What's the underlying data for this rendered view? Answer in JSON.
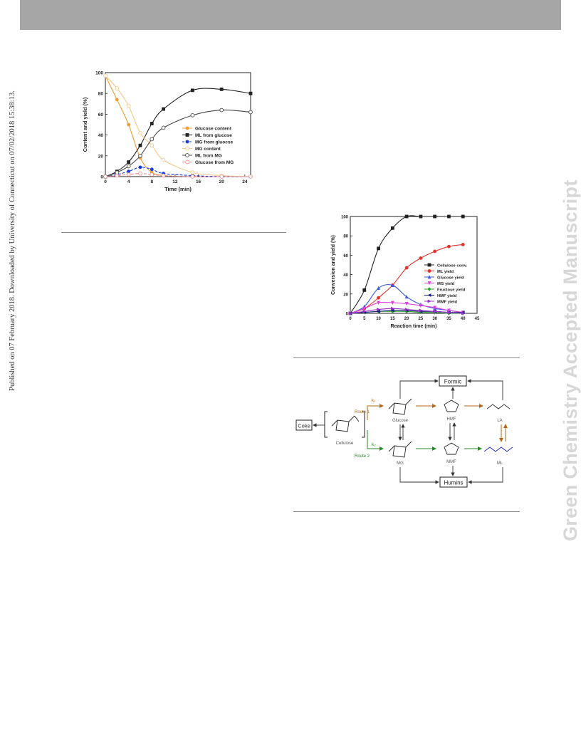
{
  "side_note": "Published on 07 February 2018. Downloaded by University of Connecticut on 07/02/2018 15:38:13.",
  "watermark": "Green Chemistry Accepted Manuscript",
  "chart_data": [
    {
      "type": "line",
      "xlabel": "Time (min)",
      "ylabel": "Content and yield (%)",
      "xlim": [
        0,
        25
      ],
      "ylim": [
        0,
        100
      ],
      "xticks": [
        0,
        4,
        8,
        12,
        16,
        20,
        24
      ],
      "yticks": [
        0,
        20,
        40,
        60,
        80,
        100
      ],
      "legend_position": "right-middle",
      "series": [
        {
          "name": "Glucose content",
          "color": "#f39c33",
          "marker": "filled-circle",
          "dash": "solid",
          "x": [
            0,
            2,
            4,
            6,
            8,
            10
          ],
          "y": [
            97,
            74,
            50,
            18,
            4,
            1
          ]
        },
        {
          "name": "ML from glucose",
          "color": "#222222",
          "marker": "filled-square",
          "dash": "solid",
          "x": [
            0,
            2,
            4,
            6,
            8,
            10,
            15,
            20,
            25
          ],
          "y": [
            0,
            5,
            14,
            30,
            51,
            65,
            83,
            84,
            80
          ]
        },
        {
          "name": "MG from gluocse",
          "color": "#1a3adf",
          "marker": "filled-circle",
          "dash": "dashed",
          "x": [
            0,
            2,
            4,
            6,
            8,
            10,
            15,
            20,
            25
          ],
          "y": [
            0,
            2,
            5,
            9,
            7,
            3,
            1,
            0,
            0
          ]
        },
        {
          "name": "MG content",
          "color": "#f5c98b",
          "marker": "open-circle",
          "dash": "solid",
          "x": [
            0,
            2,
            4,
            6,
            8,
            10,
            15,
            20,
            25
          ],
          "y": [
            97,
            85,
            68,
            42,
            30,
            16,
            4,
            1,
            0
          ]
        },
        {
          "name": "ML from MG",
          "color": "#444444",
          "marker": "open-circle",
          "dash": "solid",
          "x": [
            0,
            2,
            4,
            6,
            8,
            10,
            15,
            20,
            25
          ],
          "y": [
            0,
            4,
            10,
            20,
            36,
            47,
            59,
            64,
            62
          ]
        },
        {
          "name": "Glucose from MG",
          "color": "#f08a8a",
          "marker": "open-circle",
          "dash": "dashed",
          "x": [
            0,
            2,
            4,
            6,
            8,
            10,
            15,
            20,
            25
          ],
          "y": [
            0,
            1,
            2,
            3,
            2,
            1,
            0,
            0,
            0
          ]
        }
      ]
    },
    {
      "type": "line",
      "xlabel": "Reaction time (min)",
      "ylabel": "Conversion and yield (%)",
      "xlim": [
        0,
        45
      ],
      "ylim": [
        0,
        100
      ],
      "xticks": [
        0,
        5,
        10,
        15,
        20,
        25,
        30,
        35,
        40,
        45
      ],
      "yticks": [
        0,
        20,
        40,
        60,
        80,
        100
      ],
      "legend_position": "right-middle",
      "series": [
        {
          "name": "Cellulose conv.",
          "color": "#222222",
          "marker": "square",
          "x": [
            0,
            5,
            10,
            15,
            20,
            25,
            30,
            35,
            40
          ],
          "y": [
            0,
            24,
            67,
            88,
            100,
            100,
            100,
            100,
            100
          ]
        },
        {
          "name": "ML yield",
          "color": "#e5322d",
          "marker": "circle",
          "x": [
            0,
            5,
            10,
            15,
            20,
            25,
            30,
            35,
            40
          ],
          "y": [
            0,
            5,
            16,
            29,
            47,
            57,
            64,
            69,
            71
          ]
        },
        {
          "name": "Glucose yield",
          "color": "#3b5bd9",
          "marker": "triangle",
          "x": [
            0,
            5,
            10,
            15,
            20,
            25,
            30,
            35,
            40
          ],
          "y": [
            0,
            7,
            26,
            29,
            17,
            9,
            5,
            3,
            1
          ]
        },
        {
          "name": "MG yield",
          "color": "#e040e0",
          "marker": "triangle-down",
          "x": [
            0,
            5,
            10,
            15,
            20,
            25,
            30,
            35,
            40
          ],
          "y": [
            0,
            5,
            11,
            11,
            10,
            8,
            6,
            3,
            1
          ]
        },
        {
          "name": "Fructose yield",
          "color": "#2ca02c",
          "marker": "diamond",
          "x": [
            0,
            5,
            10,
            15,
            20,
            25,
            30,
            35,
            40
          ],
          "y": [
            0,
            1,
            2,
            2,
            2,
            1,
            1,
            0,
            0
          ]
        },
        {
          "name": "HMF yield",
          "color": "#1a237e",
          "marker": "triangle-left",
          "x": [
            0,
            5,
            10,
            15,
            20,
            25,
            30,
            35,
            40
          ],
          "y": [
            0,
            1,
            2,
            3,
            3,
            2,
            2,
            1,
            1
          ]
        },
        {
          "name": "MMF yield",
          "color": "#9b30c9",
          "marker": "triangle-right",
          "x": [
            0,
            5,
            10,
            15,
            20,
            25,
            30,
            35,
            40
          ],
          "y": [
            0,
            2,
            4,
            5,
            4,
            3,
            2,
            1,
            0
          ]
        }
      ]
    }
  ],
  "scheme": {
    "labels": {
      "formic": "Formic",
      "humins": "Humins",
      "coke": "Coke",
      "route1": "Route 1",
      "route2": "Route 2",
      "cellulose": "Cellulose",
      "glucose": "Glucose",
      "mg": "MG",
      "hmf": "HMF",
      "mmf": "MMF",
      "la": "LA",
      "ml": "ML"
    },
    "colors": {
      "route1": "#b06a1a",
      "route2": "#2a8a2a",
      "ml": "#1f2bd6"
    }
  }
}
